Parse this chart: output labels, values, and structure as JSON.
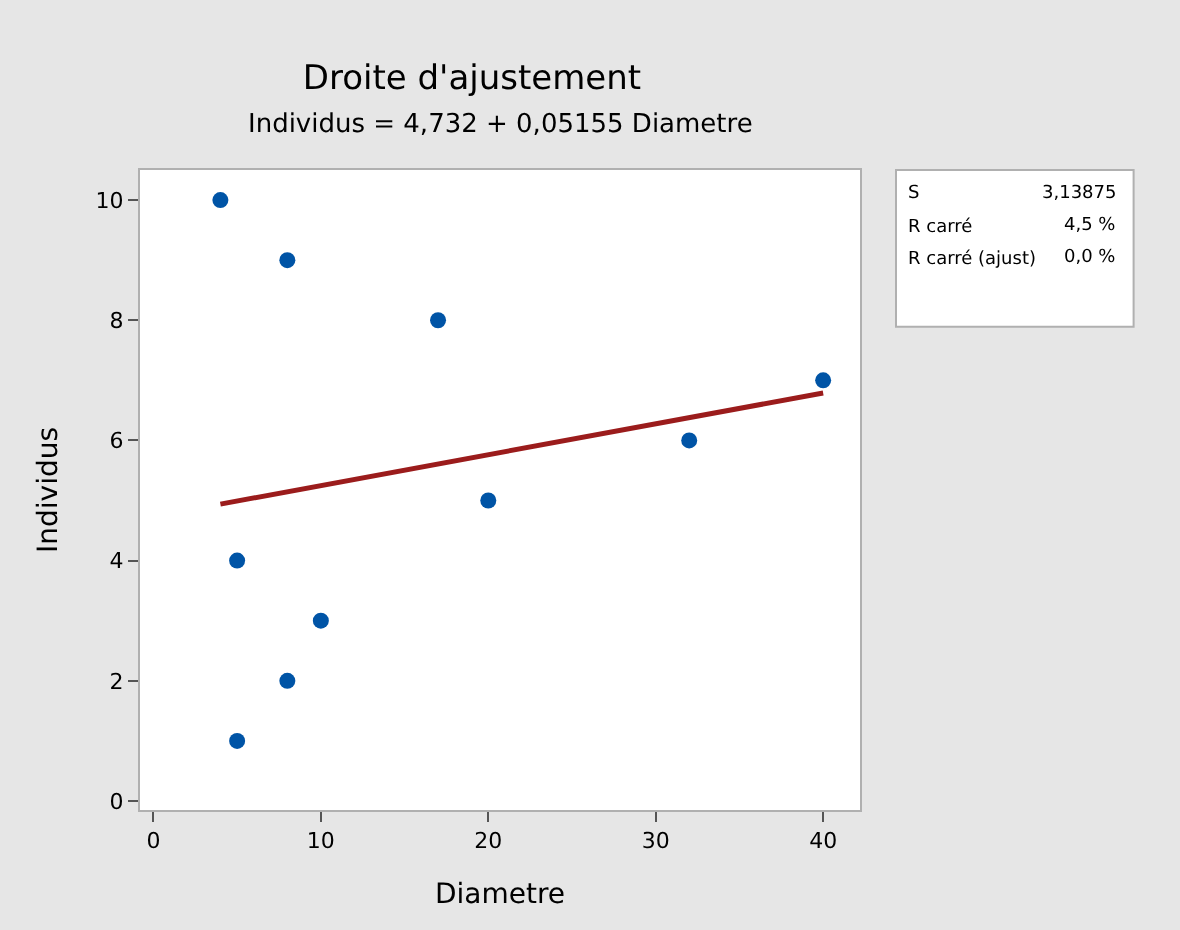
{
  "chart_data": {
    "type": "scatter",
    "title": "Droite d'ajustement",
    "subtitle": "Individus = 4,732 + 0,05155 Diametre",
    "xlabel": "Diametre",
    "ylabel": "Individus",
    "x": [
      4,
      8,
      17,
      20,
      32,
      40,
      5,
      10,
      8,
      5
    ],
    "series": [
      {
        "color": "#0054a6",
        "values": [
          10,
          9,
          8,
          5,
          6,
          7,
          4,
          3,
          2,
          1
        ],
        "marker": "circle"
      },
      {
        "type": "line",
        "color": "#9b1c1c",
        "x": [
          4,
          40
        ],
        "values": [
          4.94,
          6.79
        ],
        "marker": "none",
        "line_style": "solid"
      }
    ],
    "xlim": [
      -0.8,
      42.2
    ],
    "xticks": [
      0,
      10,
      20,
      30,
      40
    ],
    "ylim": [
      -0.15,
      10.5
    ],
    "yticks": [
      0,
      2,
      4,
      6,
      8,
      10
    ],
    "annotations": [
      "S",
      "3,13875",
      "R carré",
      "4,5 %",
      "R carré (ajust)",
      "0,0 %"
    ]
  }
}
